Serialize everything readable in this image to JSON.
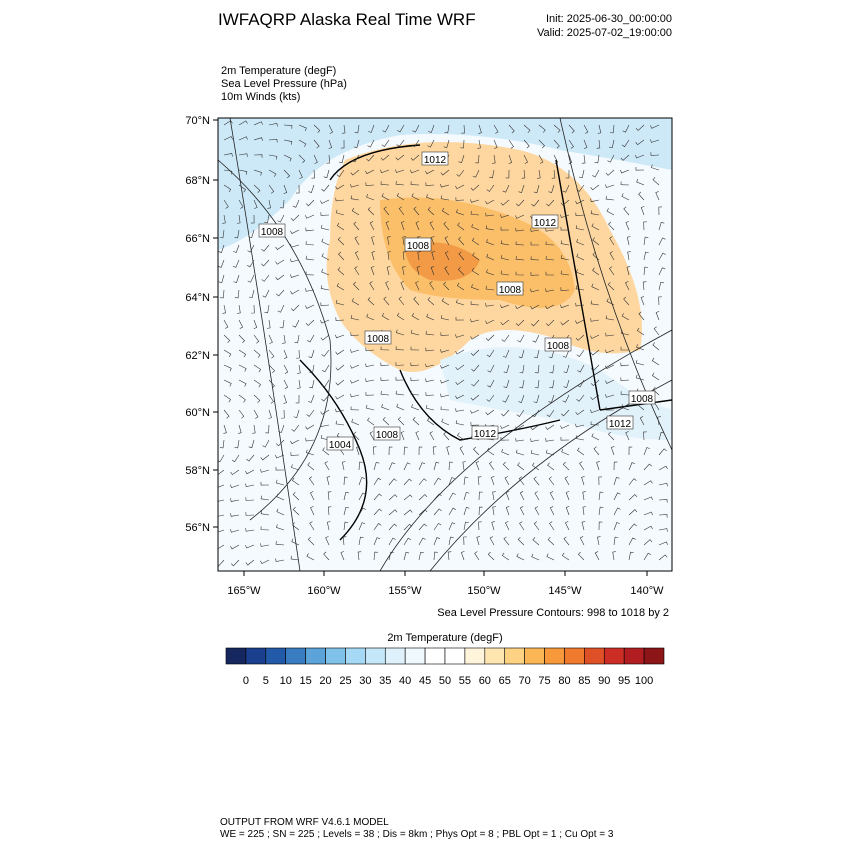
{
  "header": {
    "title": "IWFAQRP Alaska Real Time WRF",
    "init": "Init: 2025-06-30_00:00:00",
    "valid": "Valid: 2025-07-02_19:00:00"
  },
  "fields": [
    "2m Temperature   (degF)",
    "Sea Level Pressure   (hPa)",
    "10m Winds   (kts)"
  ],
  "map": {
    "lat_labels": [
      "70°N",
      "68°N",
      "66°N",
      "64°N",
      "62°N",
      "60°N",
      "58°N",
      "56°N"
    ],
    "lon_labels": [
      "165°W",
      "160°W",
      "155°W",
      "150°W",
      "145°W",
      "140°W"
    ],
    "contour_labels": [
      "1012",
      "1012",
      "1012",
      "1008",
      "1008",
      "1008",
      "1008",
      "1008",
      "1008",
      "1004",
      "1008",
      "1012"
    ],
    "contour_note": "Sea Level Pressure Contours: 998 to 1018 by 2"
  },
  "colorbar": {
    "title": "2m Temperature  (degF)",
    "labels": [
      "0",
      "5",
      "10",
      "15",
      "20",
      "25",
      "30",
      "35",
      "40",
      "45",
      "50",
      "55",
      "60",
      "65",
      "70",
      "75",
      "80",
      "85",
      "90",
      "95",
      "100"
    ],
    "colors": [
      "#15275e",
      "#1b3f8f",
      "#2259a8",
      "#3a7cc2",
      "#5ca3d9",
      "#80c1ea",
      "#a5d9f5",
      "#c4e7f9",
      "#dff2fc",
      "#f0f9fe",
      "#ffffff",
      "#ffffff",
      "#fff4dc",
      "#ffe6b0",
      "#fed283",
      "#fbb656",
      "#f7983a",
      "#ef7a2d",
      "#e05027",
      "#cc2e26",
      "#b21d22",
      "#8c1517"
    ]
  },
  "footer": [
    "OUTPUT FROM WRF V4.6.1 MODEL",
    "WE = 225 ; SN = 225 ; Levels = 38 ; Dis = 8km ; Phys Opt = 8 ; PBL Opt = 1 ; Cu Opt = 3"
  ]
}
